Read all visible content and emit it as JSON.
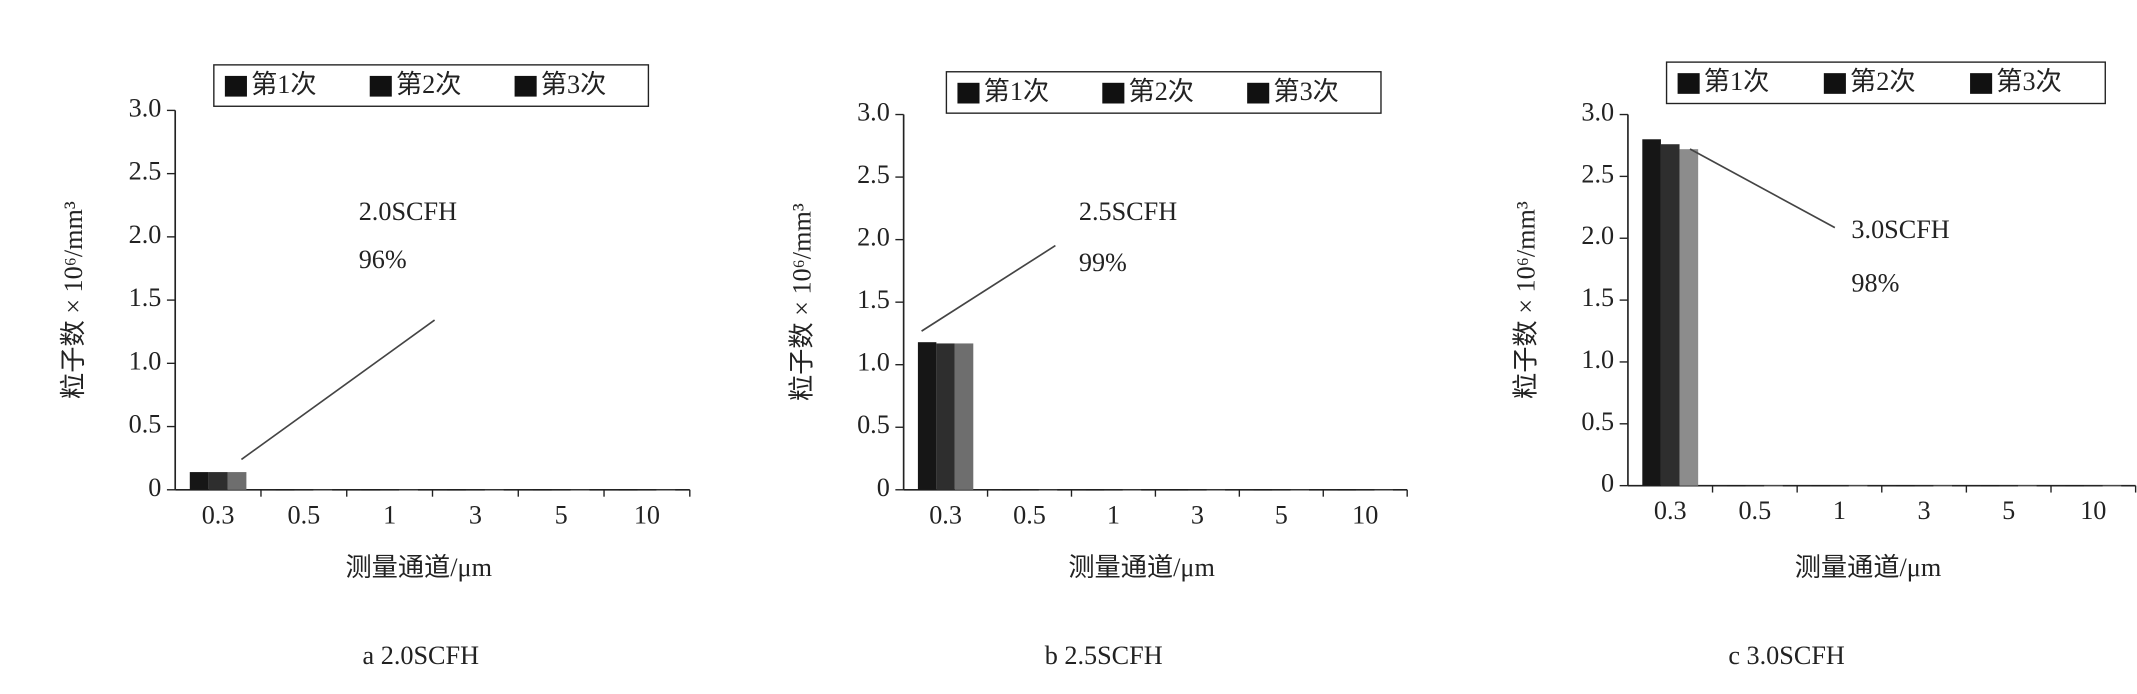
{
  "chart_data": [
    {
      "type": "bar",
      "caption": "a 2.0SCFH",
      "annotations": [
        "2.0SCFH",
        "96%"
      ],
      "categories": [
        "0.3",
        "0.5",
        "1",
        "3",
        "5",
        "10"
      ],
      "series": [
        {
          "name": "第1次",
          "color": "#161616",
          "values": [
            0.14,
            0,
            0,
            0,
            0,
            0
          ]
        },
        {
          "name": "第2次",
          "color": "#2e2e2e",
          "values": [
            0.14,
            0,
            0,
            0,
            0,
            0
          ]
        },
        {
          "name": "第3次",
          "color": "#6e6e6e",
          "values": [
            0.14,
            0,
            0,
            0,
            0,
            0
          ]
        }
      ],
      "xlabel": "测量通道/μm",
      "ylabel": "粒子数 × 10⁶/mm³",
      "ylim": [
        0,
        3
      ],
      "yticks": [
        0,
        0.5,
        {
          "value": 1,
          "label": "1.0"
        },
        1.5,
        {
          "value": 2,
          "label": "2.0"
        },
        2.5,
        {
          "value": 3,
          "label": "3.0"
        }
      ]
    },
    {
      "type": "bar",
      "caption": "b 2.5SCFH",
      "annotations": [
        "2.5SCFH",
        "99%"
      ],
      "categories": [
        "0.3",
        "0.5",
        "1",
        "3",
        "5",
        "10"
      ],
      "series": [
        {
          "name": "第1次",
          "color": "#161616",
          "values": [
            1.18,
            0,
            0,
            0,
            0,
            0
          ]
        },
        {
          "name": "第2次",
          "color": "#2e2e2e",
          "values": [
            1.17,
            0,
            0,
            0,
            0,
            0
          ]
        },
        {
          "name": "第3次",
          "color": "#6e6e6e",
          "values": [
            1.17,
            0,
            0,
            0,
            0,
            0
          ]
        }
      ],
      "xlabel": "测量通道/μm",
      "ylabel": "粒子数 × 10⁶/mm³",
      "ylim": [
        0,
        3
      ],
      "yticks": [
        0,
        0.5,
        {
          "value": 1,
          "label": "1.0"
        },
        1.5,
        {
          "value": 2,
          "label": "2.0"
        },
        2.5,
        {
          "value": 3,
          "label": "3.0"
        }
      ]
    },
    {
      "type": "bar",
      "caption": "c 3.0SCFH",
      "annotations": [
        "3.0SCFH",
        "98%"
      ],
      "categories": [
        "0.3",
        "0.5",
        "1",
        "3",
        "5",
        "10"
      ],
      "series": [
        {
          "name": "第1次",
          "color": "#161616",
          "values": [
            2.8,
            0,
            0,
            0,
            0,
            0
          ]
        },
        {
          "name": "第2次",
          "color": "#2e2e2e",
          "values": [
            2.76,
            0,
            0,
            0,
            0,
            0
          ]
        },
        {
          "name": "第3次",
          "color": "#8c8c8c",
          "values": [
            2.72,
            0,
            0,
            0,
            0,
            0
          ]
        }
      ],
      "xlabel": "测量通道/μm",
      "ylabel": "粒子数 × 10⁶/mm³",
      "ylim": [
        0,
        3
      ],
      "yticks": [
        0,
        0.5,
        {
          "value": 1,
          "label": "1.0"
        },
        1.5,
        {
          "value": 2,
          "label": "2.0"
        },
        2.5,
        {
          "value": 3,
          "label": "3.0"
        }
      ]
    }
  ]
}
